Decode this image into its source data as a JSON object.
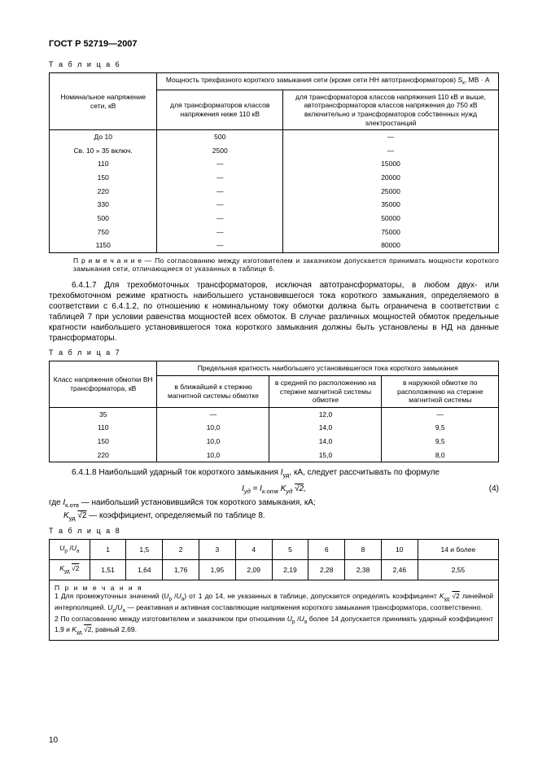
{
  "doc": {
    "standard": "ГОСТ Р 52719—2007",
    "page_number": "10"
  },
  "table6": {
    "label": "Т а б л и ц а  6",
    "col1_header": "Номинальное напряжение сети, кВ",
    "power_header_html": "Мощность трехфазного короткого замыкания сети (кроме сети НН автотрансформаторов) <i>S</i><sub>к</sub>, МВ · А",
    "sub_col1": "для трансформаторов классов напряжения ниже 110 кВ",
    "sub_col2": "для трансформаторов классов напряжения 110 кВ и выше, автотрансформаторов классов напряжения до 750 кВ включительно и трансформаторов собственных нужд электростанций",
    "rows": [
      {
        "v": "До 10",
        "a": "500",
        "b": "—"
      },
      {
        "v": "Св. 10  »  35 включ.",
        "a": "2500",
        "b": "—"
      },
      {
        "v": "110",
        "a": "—",
        "b": "15000"
      },
      {
        "v": "150",
        "a": "—",
        "b": "20000"
      },
      {
        "v": "220",
        "a": "—",
        "b": "25000"
      },
      {
        "v": "330",
        "a": "—",
        "b": "35000"
      },
      {
        "v": "500",
        "a": "—",
        "b": "50000"
      },
      {
        "v": "750",
        "a": "—",
        "b": "75000"
      },
      {
        "v": "1150",
        "a": "—",
        "b": "80000"
      }
    ],
    "note": "П р и м е ч а н и е — По согласованию между изготовителем и заказчиком допускается принимать мощности короткого замыкания сети, отличающиеся от указанных в таблице 6."
  },
  "para_6417": "6.4.1.7  Для трехобмоточных трансформаторов, исключая автотрансформаторы, в любом двух- или трехобмоточном режиме кратность наибольшего установившегося тока короткого замыкания, определяемого в соответствии с 6.4.1.2, по отношению к номинальному току обмотки должна быть ограничена в соответствии с таблицей 7 при условии равенства мощностей всех обмоток. В случае различных мощностей обмоток предельные кратности наибольшего установившегося тока короткого замыкания должны быть установлены в НД на данные трансформаторы.",
  "table7": {
    "label": "Т а б л и ц а  7",
    "col1": "Класс напряжения обмотки ВН трансформатора, кВ",
    "header_top": "Предельная кратность наибольшего установившегося тока короткого замыкания",
    "h1": "в ближайшей к стержню магнитной системы обмотке",
    "h2": "в средней по расположению на стержне магнитной системы обмотке",
    "h3": "в наружной обмотке по расположению на стержне магнитной системы",
    "rows": [
      {
        "v": "35",
        "a": "—",
        "b": "12,0",
        "c": "—"
      },
      {
        "v": "110",
        "a": "10,0",
        "b": "14,0",
        "c": "9,5"
      },
      {
        "v": "150",
        "a": "10,0",
        "b": "14,0",
        "c": "9,5"
      },
      {
        "v": "220",
        "a": "10,0",
        "b": "15,0",
        "c": "8,0"
      }
    ]
  },
  "para_6418_html": "6.4.1.8  Наибольший ударный ток короткого замыкания <i>I</i><sub>уд</sub>, кА, следует рассчитывать по формуле",
  "formula": {
    "text_html": "<i>I</i><sub>уд</sub> = <i>I</i><sub>к.отв</sub> <i>K</i><sub>уд</sub> <span class=\"sqrt\">√2</span>,",
    "num": "(4)"
  },
  "where1_html": "где <i>I</i><sub>к.отв</sub> — наибольший установившийся ток короткого замыкания, кА;",
  "where2_html": "<i>K</i><sub>уд</sub> <span class=\"sqrt\">√2</span> — коэффициент, определяемый по таблице 8.",
  "table8": {
    "label": "Т а б л и ц а  8",
    "row1_label_html": "<i>U</i><sub>р</sub> /<i>U</i><sub>а</sub>",
    "row2_label_html": "<i>K</i><sub>уд</sub> <span class=\"sqrt\">√2</span>",
    "cols": [
      "1",
      "1,5",
      "2",
      "3",
      "4",
      "5",
      "6",
      "8",
      "10",
      "14 и более"
    ],
    "vals": [
      "1,51",
      "1,64",
      "1,76",
      "1,95",
      "2,09",
      "2,19",
      "2,28",
      "2,38",
      "2,46",
      "2,55"
    ],
    "notes_title": "П р и м е ч а н и я",
    "note1_html": "1  Для промежуточных значений (<i>U</i><sub>р</sub> /<i>U</i><sub>а</sub>) от 1 до 14, не указанных в таблице, допускается определять коэффициент <i>K</i><sub>уд</sub> <span class=\"sqrt\">√2</span> линейной интерполяцией. <i>U</i><sub>р</sub>/<i>U</i><sub>а</sub> — реактивная и активная составляющие напряжения короткого замыкания трансформатора, соответственно.",
    "note2_html": "2  По согласованию между изготовителем и заказчиком при отношении <i>U</i><sub>р</sub> /<i>U</i><sub>а</sub> более 14 допускается принимать ударный коэффициент 1,9 и <i>K</i><sub>уд</sub> <span class=\"sqrt\">√2</span>, равный 2,69."
  }
}
